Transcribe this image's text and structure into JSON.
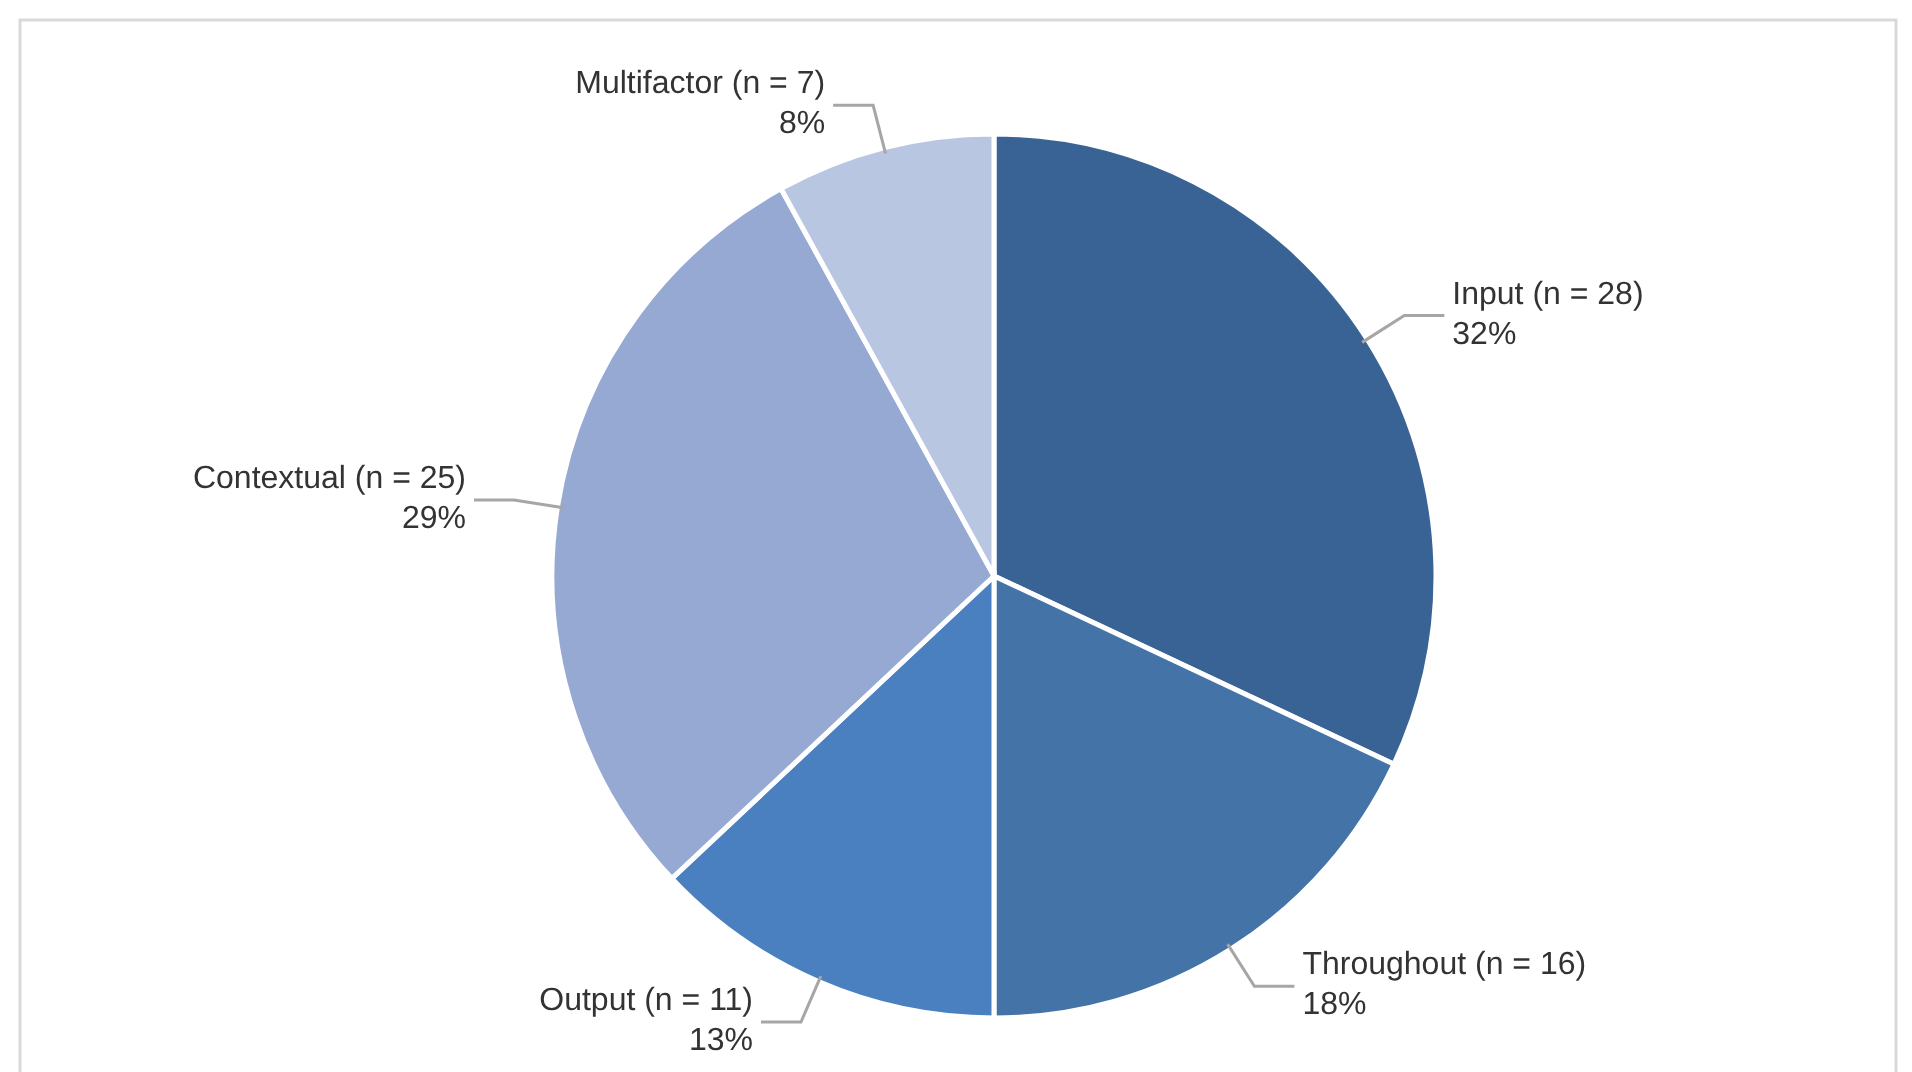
{
  "chart_data": {
    "type": "pie",
    "categories": [
      "Input (n = 28)",
      "Throughout (n = 16)",
      "Output (n = 11)",
      "Contextual (n = 25)",
      "Multifactor (n = 7)"
    ],
    "values": [
      32,
      18,
      13,
      29,
      8
    ],
    "colors": [
      "#386394",
      "#4473a8",
      "#4a7fc0",
      "#95a9d3",
      "#b9c6e2"
    ],
    "value_labels": [
      "32%",
      "18%",
      "13%",
      "29%",
      "8%"
    ]
  }
}
